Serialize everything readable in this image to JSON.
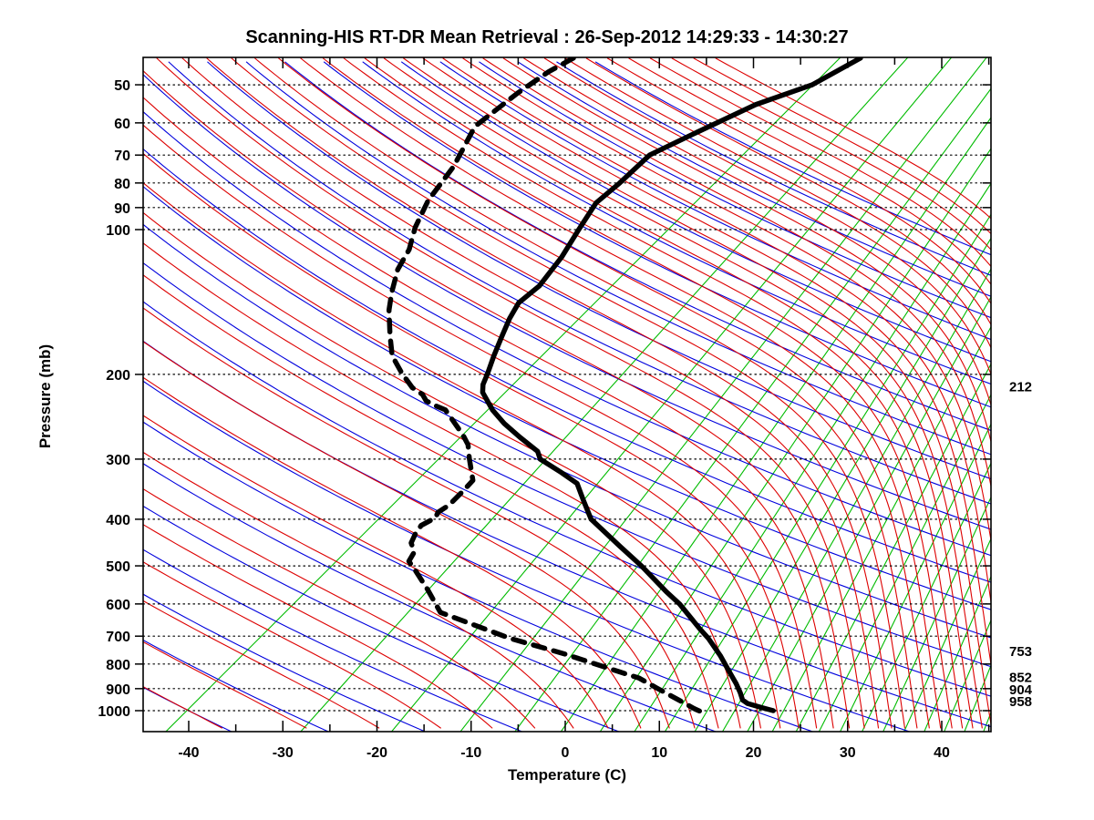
{
  "title": "Scanning-HIS RT-DR Mean Retrieval : 26-Sep-2012 14:29:33 - 14:30:27",
  "x_axis": {
    "label": "Temperature (C)",
    "major_ticks": [
      -40,
      -30,
      -20,
      -10,
      0,
      10,
      20,
      30,
      40
    ],
    "minor_ticks": [
      -45,
      -35,
      -25,
      -15,
      -5,
      5,
      15,
      25,
      35,
      45
    ],
    "range_c": [
      -45,
      45
    ]
  },
  "y_axis": {
    "label": "Pressure (mb)",
    "scale": "log",
    "ticks": [
      50,
      60,
      70,
      80,
      90,
      100,
      200,
      300,
      400,
      500,
      600,
      700,
      800,
      900,
      1000
    ],
    "range_mb": [
      44,
      1106
    ]
  },
  "right_pressure_labels": [
    212,
    753,
    852,
    904,
    958
  ],
  "colors": {
    "temperature_curve": "#000000",
    "dewpoint_curve": "#000000",
    "dry_adiabats": "#0000dd",
    "moist_adiabats": "#dd0000",
    "isotherm_fan": "#00bb00",
    "isobars": "#000000",
    "frame": "#000000",
    "background": "#ffffff"
  },
  "chart_data": {
    "type": "line",
    "subtype": "skew-t_log-p_sounding",
    "title": "Scanning-HIS RT-DR Mean Retrieval : 26-Sep-2012 14:29:33 - 14:30:27",
    "xlabel": "Temperature (C)",
    "ylabel": "Pressure (mb)",
    "x_range_c": [
      -45,
      45
    ],
    "pressure_range_mb": [
      44,
      1106
    ],
    "pressure_gridlines_mb": [
      50,
      60,
      70,
      80,
      90,
      100,
      200,
      300,
      400,
      500,
      600,
      700,
      800,
      900,
      1000
    ],
    "legend": "none",
    "grid": "skew-t thermodynamic background (isobars dotted black, dry adiabats blue, saturated adiabats red, skewed isotherm fan green)",
    "series": [
      {
        "name": "temperature",
        "style": "solid thick black",
        "points_pressure_mb_temp_c": [
          [
            44,
            -38.0
          ],
          [
            50,
            -40.3
          ],
          [
            55,
            -44.2
          ],
          [
            63,
            -47.6
          ],
          [
            70,
            -50.1
          ],
          [
            80,
            -50.3
          ],
          [
            88,
            -50.7
          ],
          [
            100,
            -49.7
          ],
          [
            114,
            -48.6
          ],
          [
            131,
            -47.9
          ],
          [
            142,
            -48.3
          ],
          [
            153,
            -47.6
          ],
          [
            167,
            -46.5
          ],
          [
            183,
            -45.3
          ],
          [
            199,
            -44.1
          ],
          [
            210,
            -43.4
          ],
          [
            218,
            -42.6
          ],
          [
            237,
            -39.7
          ],
          [
            253,
            -37.0
          ],
          [
            270,
            -33.9
          ],
          [
            289,
            -30.5
          ],
          [
            300,
            -29.4
          ],
          [
            320,
            -25.7
          ],
          [
            337,
            -22.9
          ],
          [
            367,
            -20.3
          ],
          [
            400,
            -17.6
          ],
          [
            456,
            -11.6
          ],
          [
            500,
            -7.3
          ],
          [
            566,
            -1.9
          ],
          [
            600,
            0.8
          ],
          [
            676,
            5.6
          ],
          [
            707,
            7.5
          ],
          [
            770,
            10.7
          ],
          [
            830,
            13.3
          ],
          [
            879,
            15.3
          ],
          [
            918,
            16.7
          ],
          [
            950,
            17.7
          ],
          [
            966,
            18.6
          ],
          [
            985,
            20.5
          ],
          [
            1000,
            22.1
          ]
        ]
      },
      {
        "name": "dewpoint",
        "style": "dashed thick black",
        "points_pressure_mb_temp_c": [
          [
            44,
            -68.5
          ],
          [
            47,
            -69.7
          ],
          [
            52,
            -70.7
          ],
          [
            61,
            -71.7
          ],
          [
            74,
            -69.7
          ],
          [
            87,
            -68.8
          ],
          [
            99,
            -67.3
          ],
          [
            110,
            -65.6
          ],
          [
            121,
            -64.7
          ],
          [
            135,
            -62.9
          ],
          [
            147,
            -61.3
          ],
          [
            166,
            -58.5
          ],
          [
            183,
            -56.1
          ],
          [
            199,
            -53.2
          ],
          [
            213,
            -50.6
          ],
          [
            220,
            -48.8
          ],
          [
            227,
            -47.7
          ],
          [
            232,
            -46.3
          ],
          [
            237,
            -44.7
          ],
          [
            267,
            -40.2
          ],
          [
            280,
            -38.6
          ],
          [
            299,
            -37.0
          ],
          [
            332,
            -34.3
          ],
          [
            351,
            -34.2
          ],
          [
            374,
            -34.2
          ],
          [
            387,
            -34.6
          ],
          [
            397,
            -34.3
          ],
          [
            412,
            -35.0
          ],
          [
            430,
            -34.7
          ],
          [
            448,
            -34.2
          ],
          [
            468,
            -32.9
          ],
          [
            489,
            -32.5
          ],
          [
            513,
            -30.7
          ],
          [
            560,
            -27.5
          ],
          [
            625,
            -23.7
          ],
          [
            707,
            -13.6
          ],
          [
            763,
            -6.0
          ],
          [
            830,
            1.6
          ],
          [
            856,
            4.4
          ],
          [
            897,
            7.3
          ],
          [
            950,
            10.9
          ],
          [
            992,
            13.6
          ],
          [
            1003,
            14.4
          ]
        ]
      }
    ],
    "background_grid": {
      "dry_adiabats_theta_c": {
        "start": -40,
        "end": 230,
        "step": 10
      },
      "moist_adiabats_surface_t_c": [
        -40,
        -31,
        -23,
        -16,
        -10,
        -5,
        -0.5,
        3.5,
        7.2,
        10.4,
        13.2,
        15.8,
        18.2,
        20.4,
        22.5,
        24.5,
        26.4,
        28.2,
        29.9,
        31.5,
        33,
        34.4,
        35.8,
        37.1,
        38.4,
        39.6,
        40.8,
        41.9,
        43,
        44,
        45,
        46,
        47,
        48,
        49,
        50,
        51,
        52,
        53,
        54,
        55,
        56,
        57,
        58,
        59,
        60
      ],
      "isotherm_fan_t_c_and_slope": [
        [
          -40.2,
          1.0
        ],
        [
          -26.1,
          0.9
        ],
        [
          -16.6,
          0.83
        ],
        [
          -9.4,
          0.78
        ],
        [
          -3.7,
          0.74
        ],
        [
          1.1,
          0.7
        ],
        [
          5.2,
          0.67
        ],
        [
          8.8,
          0.65
        ],
        [
          12.0,
          0.63
        ],
        [
          15.1,
          0.6
        ],
        [
          18.0,
          0.58
        ],
        [
          20.6,
          0.56
        ],
        [
          23.2,
          0.54
        ],
        [
          25.7,
          0.53
        ],
        [
          28.1,
          0.51
        ],
        [
          30.3,
          0.49
        ],
        [
          32.6,
          0.48
        ],
        [
          34.8,
          0.46
        ],
        [
          37.0,
          0.45
        ],
        [
          39.1,
          0.43
        ],
        [
          41.2,
          0.42
        ],
        [
          43.3,
          0.4
        ],
        [
          45.3,
          0.39
        ]
      ]
    },
    "annotations_pressure_mb": [
      212,
      753,
      852,
      904,
      958
    ]
  }
}
